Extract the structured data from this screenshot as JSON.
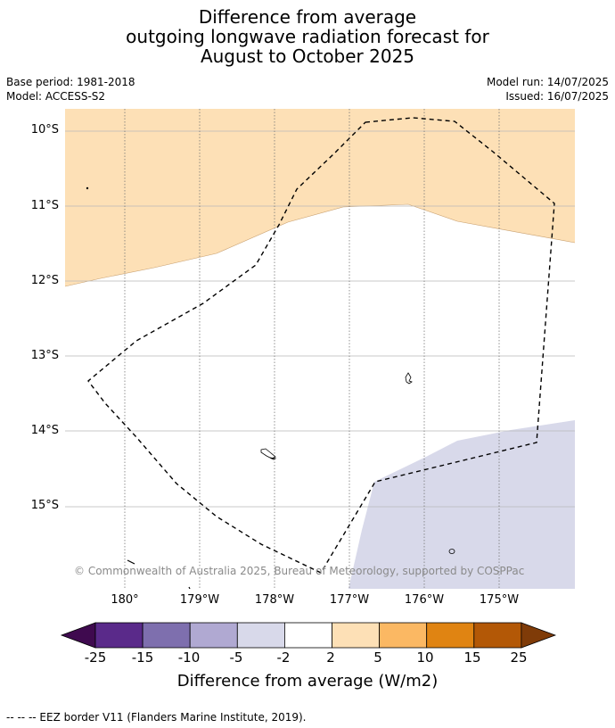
{
  "title": {
    "line1": "Difference from average",
    "line2": "outgoing longwave radiation forecast for",
    "line3": "August to October 2025"
  },
  "meta": {
    "base_period": "Base period: 1981-2018",
    "model": "Model: ACCESS-S2",
    "model_run": "Model run: 14/07/2025",
    "issued": "Issued: 16/07/2025"
  },
  "map": {
    "lat_labels": [
      "10°S",
      "11°S",
      "12°S",
      "13°S",
      "14°S",
      "15°S"
    ],
    "lon_labels": [
      "180°",
      "179°W",
      "178°W",
      "177°W",
      "176°W",
      "175°W"
    ],
    "copyright": "© Commonwealth of Australia 2025, Bureau of Meteorology, supported by COSPPac",
    "regions": [
      {
        "name": "anomaly 2 to 5 (north)",
        "color": "#fde0b6"
      },
      {
        "name": "anomaly -5 to -2 (south-east)",
        "color": "#d8d9ea"
      }
    ],
    "eez_line": "dashed black"
  },
  "colorbar": {
    "title": "Difference from average (W/m2)",
    "ticks": [
      "-25",
      "-15",
      "-10",
      "-5",
      "-2",
      "2",
      "5",
      "10",
      "15",
      "25"
    ],
    "colors": [
      "#3f0a4f",
      "#5a2a8a",
      "#7e6fae",
      "#b0a9d2",
      "#d8d9ea",
      "#ffffff",
      "#fde0b6",
      "#fbb863",
      "#e08412",
      "#b35806",
      "#7f3b08"
    ]
  },
  "footnote": "--  --  -- EEZ border V11 (Flanders Marine Institute, 2019)."
}
